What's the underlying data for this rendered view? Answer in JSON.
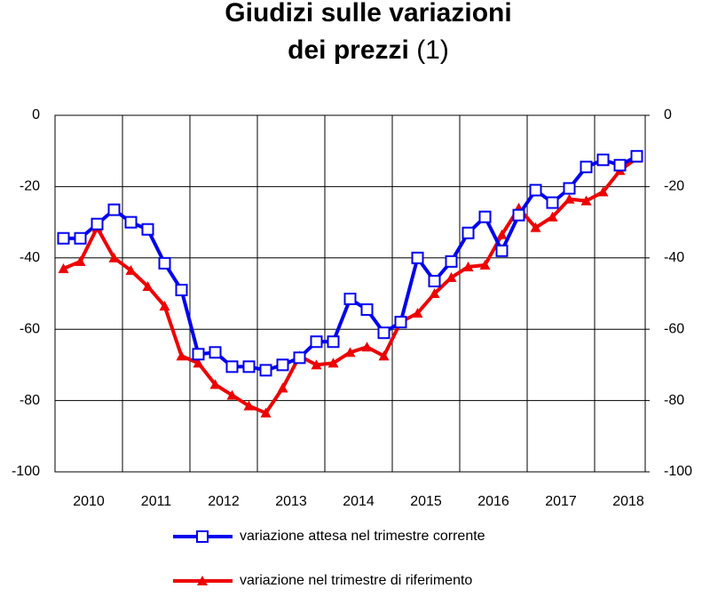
{
  "chart_data": {
    "type": "line",
    "title_lines": [
      "Giudizi sulle variazioni",
      "dei prezzi"
    ],
    "title_note": "(1)",
    "x": [
      2010.125,
      2010.375,
      2010.625,
      2010.875,
      2011.125,
      2011.375,
      2011.625,
      2011.875,
      2012.125,
      2012.375,
      2012.625,
      2012.875,
      2013.125,
      2013.375,
      2013.625,
      2013.875,
      2014.125,
      2014.375,
      2014.625,
      2014.875,
      2015.125,
      2015.375,
      2015.625,
      2015.875,
      2016.125,
      2016.375,
      2016.625,
      2016.875,
      2017.125,
      2017.375,
      2017.625,
      2017.875,
      2018.125,
      2018.375,
      2018.625
    ],
    "xlim": [
      2010,
      2018.75
    ],
    "xticks": [
      {
        "value": 2010.5,
        "label": "2010"
      },
      {
        "value": 2011.5,
        "label": "2011"
      },
      {
        "value": 2012.5,
        "label": "2012"
      },
      {
        "value": 2013.5,
        "label": "2013"
      },
      {
        "value": 2014.5,
        "label": "2014"
      },
      {
        "value": 2015.5,
        "label": "2015"
      },
      {
        "value": 2016.5,
        "label": "2016"
      },
      {
        "value": 2017.5,
        "label": "2017"
      },
      {
        "value": 2018.5,
        "label": "2018"
      }
    ],
    "xgrid": [
      2011,
      2012,
      2013,
      2014,
      2015,
      2016,
      2017,
      2018
    ],
    "ylim": [
      -100,
      0
    ],
    "yticks": [
      -100,
      -80,
      -60,
      -40,
      -20,
      0
    ],
    "y2lim": [
      -100,
      0
    ],
    "y2ticks": [
      -100,
      -80,
      -60,
      -40,
      -20,
      0
    ],
    "grid": true,
    "series": [
      {
        "name": "variazione attesa nel trimestre corrente",
        "color": "#0000ee",
        "marker": "square",
        "values": [
          -34.5,
          -34.5,
          -30.5,
          -26.5,
          -30,
          -32,
          -41.5,
          -49,
          -67,
          -66.5,
          -70.5,
          -70.5,
          -71.5,
          -70,
          -68,
          -63.5,
          -63.5,
          -51.5,
          -54.5,
          -61,
          -58,
          -40,
          -46.5,
          -41,
          -33,
          -28.5,
          -38,
          -28,
          -21,
          -24.5,
          -20.5,
          -14.5,
          -12.5,
          -14,
          -11.5
        ]
      },
      {
        "name": "variazione nel trimestre di riferimento",
        "color": "#ee0000",
        "marker": "triangle",
        "values": [
          -43,
          -41,
          -31.5,
          -40,
          -43.5,
          -48,
          -53.5,
          -67.5,
          -69.5,
          -75.5,
          -78.5,
          -81.5,
          -83.5,
          -76.5,
          -67.5,
          -70,
          -69.5,
          -66.5,
          -65,
          -67.5,
          -58,
          -55.5,
          -50,
          -45.5,
          -42.5,
          -42,
          -33.5,
          -26,
          -31.5,
          -28.5,
          -23.5,
          -24,
          -21.5,
          -15.5,
          -12
        ]
      }
    ]
  }
}
